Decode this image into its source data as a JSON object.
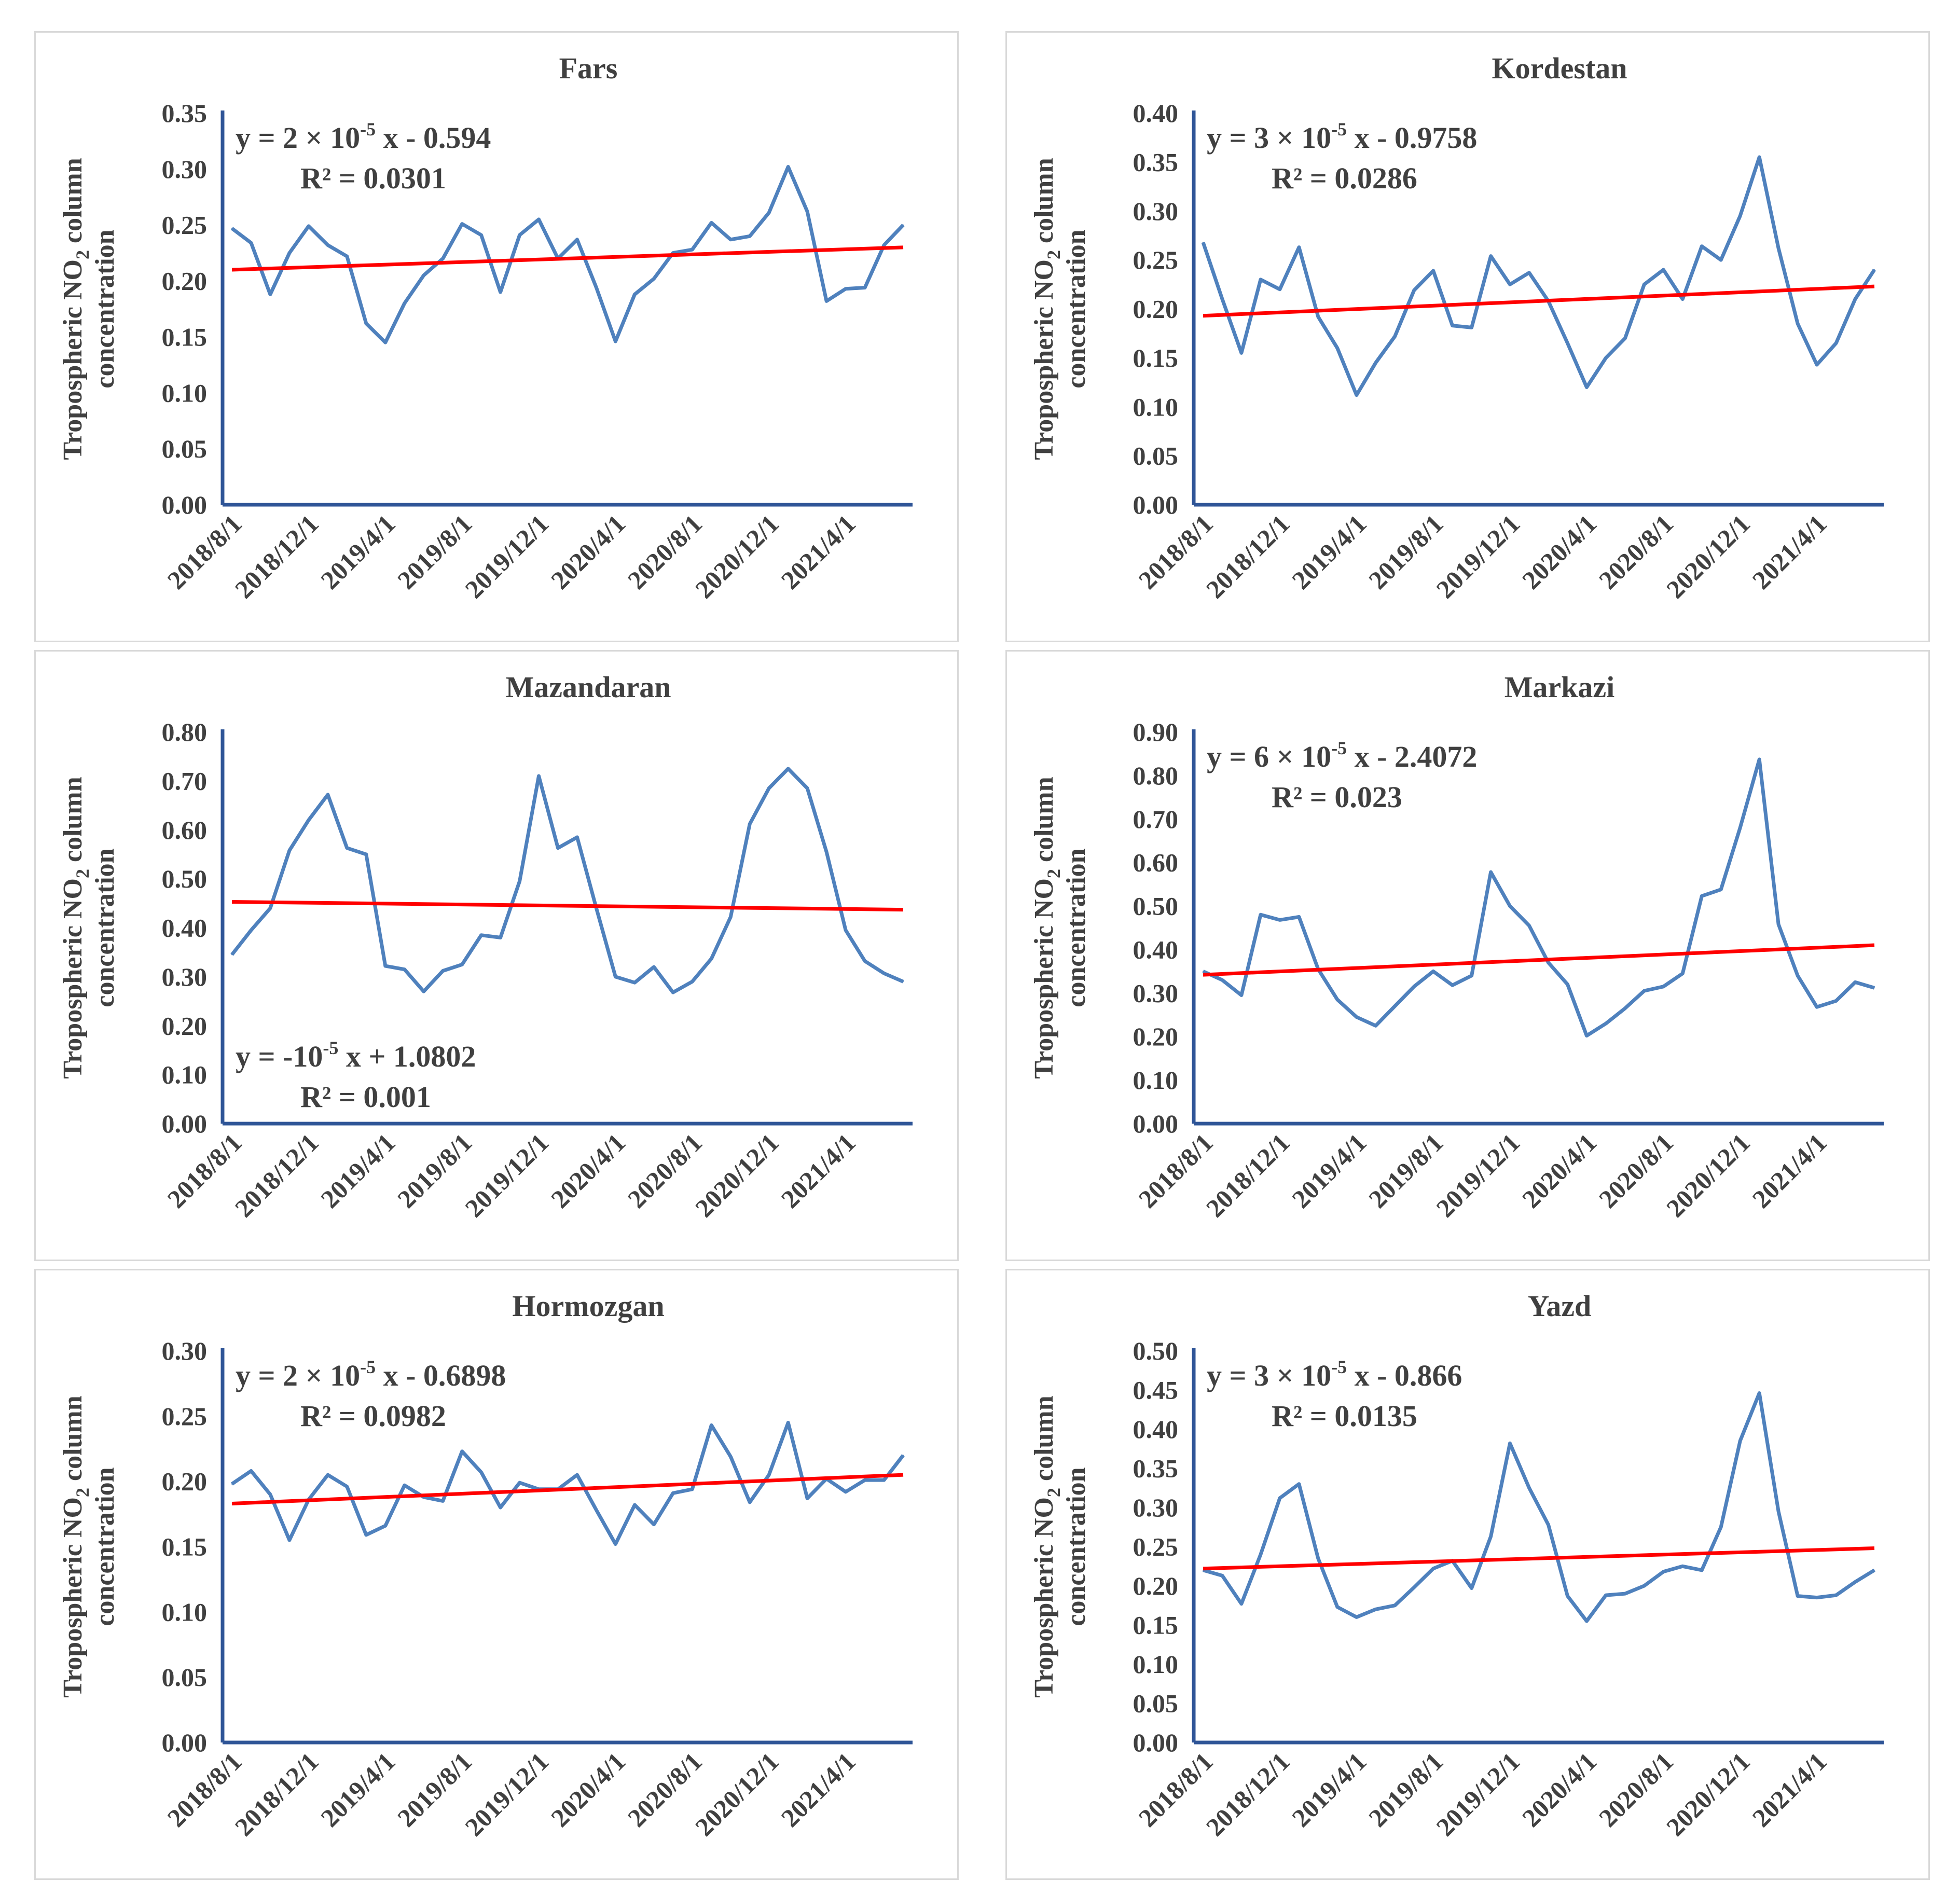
{
  "colors": {
    "series": "#4f81bd",
    "trend": "#ff0000",
    "axis": "#2f5597",
    "text": "#404040",
    "frame": "#d9d9d9"
  },
  "chart_data": [
    {
      "type": "line",
      "title": "Fars",
      "ylabel": {
        "pre": "Tropospheric NO",
        "sub": "2",
        "post": " column",
        "line2": "concentration"
      },
      "xticks": [
        "2018/8/1",
        "2018/12/1",
        "2019/4/1",
        "2019/8/1",
        "2019/12/1",
        "2020/4/1",
        "2020/8/1",
        "2020/12/1",
        "2021/4/1"
      ],
      "ylim": [
        0,
        0.35
      ],
      "yticks": [
        "0.00",
        "0.05",
        "0.10",
        "0.15",
        "0.20",
        "0.25",
        "0.30",
        "0.35"
      ],
      "values": [
        0.247,
        0.234,
        0.188,
        0.225,
        0.249,
        0.232,
        0.222,
        0.162,
        0.145,
        0.18,
        0.205,
        0.22,
        0.251,
        0.241,
        0.19,
        0.241,
        0.255,
        0.22,
        0.237,
        0.194,
        0.146,
        0.188,
        0.202,
        0.225,
        0.228,
        0.252,
        0.237,
        0.24,
        0.261,
        0.302,
        0.262,
        0.182,
        0.193,
        0.194,
        0.232,
        0.25
      ],
      "trend": [
        0.21,
        0.23
      ],
      "equation": {
        "pre": "y = 2 × 10",
        "exp": "-5",
        "post": " x - 0.594",
        "r2": "R² = 0.0301"
      },
      "eqpos": "top-left"
    },
    {
      "type": "line",
      "title": "Kordestan",
      "ylabel": {
        "pre": "Tropospheric NO",
        "sub": "2",
        "post": " column",
        "line2": "concentration"
      },
      "xticks": [
        "2018/8/1",
        "2018/12/1",
        "2019/4/1",
        "2019/8/1",
        "2019/12/1",
        "2020/4/1",
        "2020/8/1",
        "2020/12/1",
        "2021/4/1"
      ],
      "ylim": [
        0,
        0.4
      ],
      "yticks": [
        "0.00",
        "0.05",
        "0.10",
        "0.15",
        "0.20",
        "0.25",
        "0.30",
        "0.35",
        "0.40"
      ],
      "values": [
        0.268,
        0.21,
        0.155,
        0.23,
        0.22,
        0.263,
        0.192,
        0.16,
        0.112,
        0.145,
        0.172,
        0.219,
        0.239,
        0.183,
        0.181,
        0.254,
        0.225,
        0.237,
        0.208,
        0.165,
        0.12,
        0.15,
        0.17,
        0.225,
        0.24,
        0.21,
        0.264,
        0.25,
        0.295,
        0.355,
        0.262,
        0.185,
        0.143,
        0.165,
        0.21,
        0.24
      ],
      "trend": [
        0.193,
        0.223
      ],
      "equation": {
        "pre": "y = 3 × 10",
        "exp": "-5",
        "post": " x - 0.9758",
        "r2": "R² = 0.0286"
      },
      "eqpos": "top-left"
    },
    {
      "type": "line",
      "title": "Mazandaran",
      "ylabel": {
        "pre": "Tropospheric NO",
        "sub": "2",
        "post": " column",
        "line2": "concentration"
      },
      "xticks": [
        "2018/8/1",
        "2018/12/1",
        "2019/4/1",
        "2019/8/1",
        "2019/12/1",
        "2020/4/1",
        "2020/8/1",
        "2020/12/1",
        "2021/4/1"
      ],
      "ylim": [
        0,
        0.8
      ],
      "yticks": [
        "0.00",
        "0.10",
        "0.20",
        "0.30",
        "0.40",
        "0.50",
        "0.60",
        "0.70",
        "0.80"
      ],
      "values": [
        0.345,
        0.395,
        0.44,
        0.558,
        0.62,
        0.672,
        0.563,
        0.55,
        0.322,
        0.315,
        0.27,
        0.312,
        0.325,
        0.385,
        0.38,
        0.495,
        0.71,
        0.563,
        0.585,
        0.44,
        0.3,
        0.288,
        0.32,
        0.268,
        0.29,
        0.337,
        0.422,
        0.612,
        0.685,
        0.725,
        0.685,
        0.555,
        0.395,
        0.332,
        0.307,
        0.29
      ],
      "trend": [
        0.453,
        0.437
      ],
      "equation": {
        "pre": "y = -10",
        "exp": "-5",
        "post": " x + 1.0802",
        "r2": "R² = 0.001"
      },
      "eqpos": "bottom-left"
    },
    {
      "type": "line",
      "title": "Markazi",
      "ylabel": {
        "pre": "Tropospheric NO",
        "sub": "2",
        "post": " column",
        "line2": "concentration"
      },
      "xticks": [
        "2018/8/1",
        "2018/12/1",
        "2019/4/1",
        "2019/8/1",
        "2019/12/1",
        "2020/4/1",
        "2020/8/1",
        "2020/12/1",
        "2021/4/1"
      ],
      "ylim": [
        0,
        0.9
      ],
      "yticks": [
        "0.00",
        "0.10",
        "0.20",
        "0.30",
        "0.40",
        "0.50",
        "0.60",
        "0.70",
        "0.80",
        "0.90"
      ],
      "values": [
        0.35,
        0.33,
        0.295,
        0.48,
        0.468,
        0.475,
        0.355,
        0.285,
        0.245,
        0.225,
        0.27,
        0.315,
        0.35,
        0.318,
        0.34,
        0.578,
        0.5,
        0.455,
        0.37,
        0.32,
        0.202,
        0.23,
        0.265,
        0.305,
        0.315,
        0.345,
        0.523,
        0.538,
        0.68,
        0.837,
        0.458,
        0.34,
        0.268,
        0.282,
        0.325,
        0.312
      ],
      "trend": [
        0.342,
        0.41
      ],
      "equation": {
        "pre": "y = 6 × 10",
        "exp": "-5",
        "post": " x - 2.4072",
        "r2": "R² = 0.023"
      },
      "eqpos": "top-left"
    },
    {
      "type": "line",
      "title": "Hormozgan",
      "ylabel": {
        "pre": "Tropospheric NO",
        "sub": "2",
        "post": " column",
        "line2": "concentration"
      },
      "xticks": [
        "2018/8/1",
        "2018/12/1",
        "2019/4/1",
        "2019/8/1",
        "2019/12/1",
        "2020/4/1",
        "2020/8/1",
        "2020/12/1",
        "2021/4/1"
      ],
      "ylim": [
        0,
        0.3
      ],
      "yticks": [
        "0.00",
        "0.05",
        "0.10",
        "0.15",
        "0.20",
        "0.25",
        "0.30"
      ],
      "values": [
        0.198,
        0.208,
        0.19,
        0.155,
        0.186,
        0.205,
        0.196,
        0.159,
        0.166,
        0.197,
        0.188,
        0.185,
        0.223,
        0.207,
        0.18,
        0.199,
        0.194,
        0.194,
        0.205,
        0.178,
        0.152,
        0.182,
        0.167,
        0.191,
        0.194,
        0.243,
        0.219,
        0.184,
        0.205,
        0.245,
        0.187,
        0.202,
        0.192,
        0.201,
        0.201,
        0.22
      ],
      "trend": [
        0.183,
        0.205
      ],
      "equation": {
        "pre": "y = 2 × 10",
        "exp": "-5",
        "post": " x - 0.6898",
        "r2": "R² = 0.0982"
      },
      "eqpos": "top-left"
    },
    {
      "type": "line",
      "title": "Yazd",
      "ylabel": {
        "pre": "Tropospheric NO",
        "sub": "2",
        "post": " column",
        "line2": "concentration"
      },
      "xticks": [
        "2018/8/1",
        "2018/12/1",
        "2019/4/1",
        "2019/8/1",
        "2019/12/1",
        "2020/4/1",
        "2020/8/1",
        "2020/12/1",
        "2021/4/1"
      ],
      "ylim": [
        0,
        0.5
      ],
      "yticks": [
        "0.00",
        "0.05",
        "0.10",
        "0.15",
        "0.20",
        "0.25",
        "0.30",
        "0.35",
        "0.40",
        "0.45",
        "0.50"
      ],
      "values": [
        0.22,
        0.213,
        0.177,
        0.24,
        0.312,
        0.33,
        0.235,
        0.173,
        0.16,
        0.17,
        0.175,
        0.198,
        0.222,
        0.232,
        0.197,
        0.263,
        0.382,
        0.325,
        0.278,
        0.187,
        0.155,
        0.188,
        0.19,
        0.2,
        0.218,
        0.225,
        0.22,
        0.275,
        0.385,
        0.446,
        0.295,
        0.187,
        0.185,
        0.188,
        0.205,
        0.22
      ],
      "trend": [
        0.222,
        0.248
      ],
      "equation": {
        "pre": "y = 3 × 10",
        "exp": "-5",
        "post": " x - 0.866",
        "r2": "R² = 0.0135"
      },
      "eqpos": "top-left"
    }
  ]
}
